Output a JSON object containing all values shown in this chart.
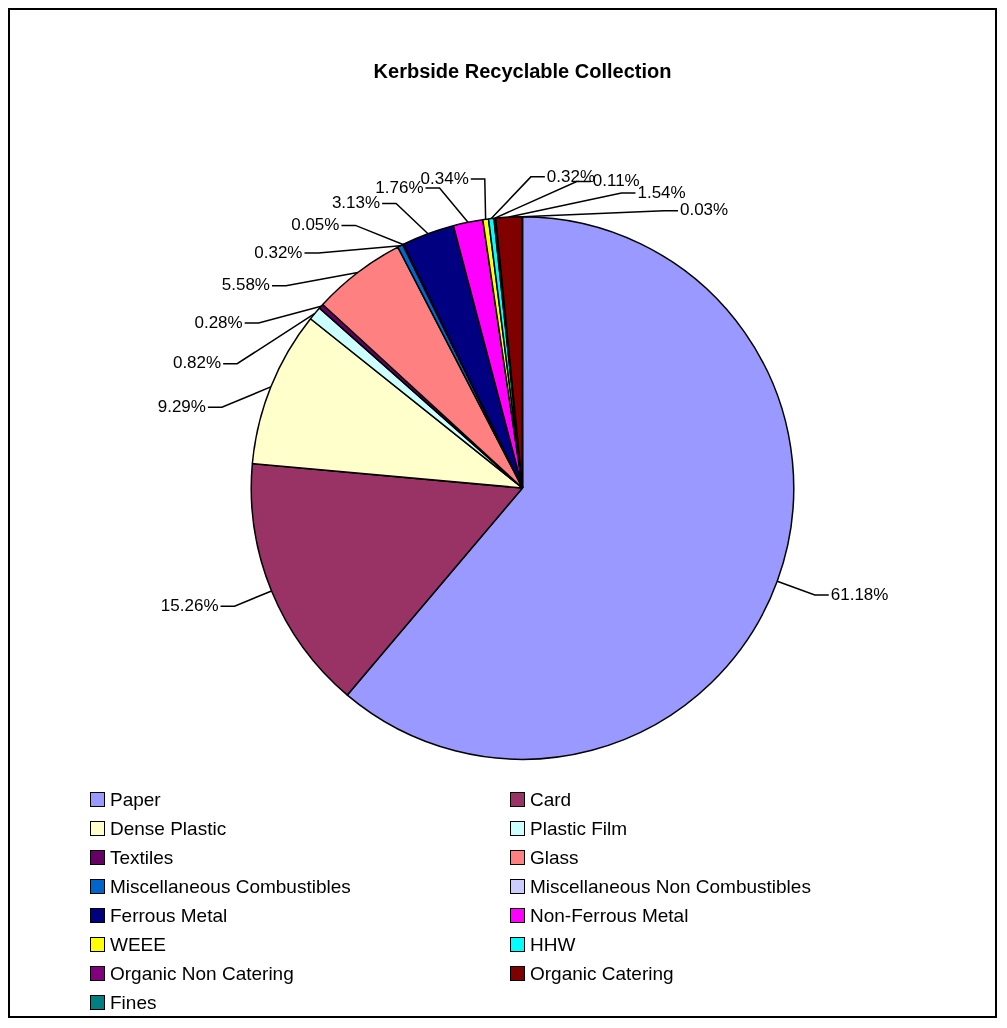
{
  "chart_data": {
    "type": "pie",
    "title": "Kerbside Recyclable Collection",
    "categories": [
      "Paper",
      "Card",
      "Dense Plastic",
      "Plastic Film",
      "Textiles",
      "Glass",
      "Miscellaneous Combustibles",
      "Miscellaneous Non Combustibles",
      "Ferrous Metal",
      "Non-Ferrous Metal",
      "WEEE",
      "HHW",
      "Organic Non Catering",
      "Organic Catering",
      "Fines"
    ],
    "values": [
      61.18,
      15.26,
      9.29,
      0.82,
      0.28,
      5.58,
      0.32,
      0.05,
      3.13,
      1.76,
      0.34,
      0.32,
      0.11,
      1.54,
      0.03
    ],
    "colors": [
      "#9999ff",
      "#993366",
      "#ffffcc",
      "#ccffff",
      "#660066",
      "#ff8080",
      "#0066cc",
      "#ccccff",
      "#000080",
      "#ff00ff",
      "#ffff00",
      "#00ffff",
      "#800080",
      "#800000",
      "#008080"
    ],
    "value_labels": [
      "61.18%",
      "15.26%",
      "9.29%",
      "0.82%",
      "0.28%",
      "5.58%",
      "0.32%",
      "0.05%",
      "3.13%",
      "1.76%",
      "0.34%",
      "0.32%",
      "0.11%",
      "1.54%",
      "0.03%"
    ],
    "legend": "bottom"
  }
}
